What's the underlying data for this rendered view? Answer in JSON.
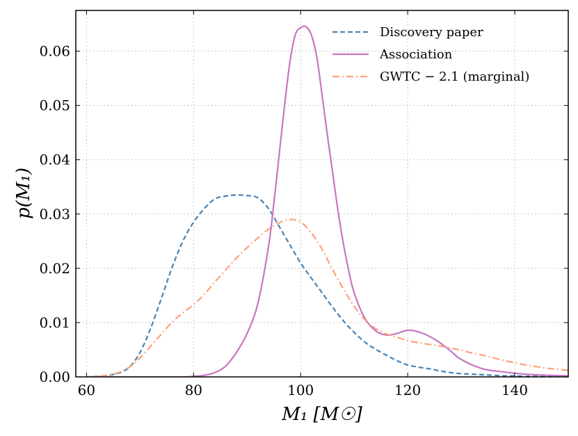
{
  "chart_data": {
    "type": "line",
    "xlabel": "M₁ [M☉]",
    "ylabel": "p(M₁)",
    "xlim": [
      58,
      150
    ],
    "ylim": [
      0,
      0.0675
    ],
    "grid": true,
    "legend_position": "top-right",
    "x_ticks": [
      60,
      80,
      100,
      120,
      140
    ],
    "x_tick_labels": [
      "60",
      "80",
      "100",
      "120",
      "140"
    ],
    "y_ticks": [
      0,
      0.01,
      0.02,
      0.03,
      0.04,
      0.05,
      0.06
    ],
    "y_tick_labels": [
      "0.00",
      "0.01",
      "0.02",
      "0.03",
      "0.04",
      "0.05",
      "0.06"
    ],
    "series": [
      {
        "name": "Discovery paper",
        "color": "#4682b4",
        "style": "dashed",
        "x": [
          60,
          62,
          64,
          66,
          68,
          70,
          72,
          74,
          76,
          78,
          80,
          82,
          84,
          86,
          88,
          90,
          92,
          94,
          96,
          98,
          100,
          102,
          104,
          106,
          108,
          110,
          112,
          114,
          116,
          118,
          120,
          122,
          124,
          126,
          128,
          130,
          132,
          134,
          136,
          138,
          140,
          142,
          144,
          146,
          148,
          150
        ],
        "y": [
          0.0,
          0.0001,
          0.0003,
          0.0007,
          0.0018,
          0.0045,
          0.009,
          0.0145,
          0.0202,
          0.025,
          0.0285,
          0.031,
          0.0328,
          0.0333,
          0.0335,
          0.0334,
          0.033,
          0.031,
          0.0277,
          0.0243,
          0.021,
          0.0182,
          0.0155,
          0.0128,
          0.0103,
          0.0082,
          0.0064,
          0.0051,
          0.004,
          0.003,
          0.0022,
          0.0018,
          0.0015,
          0.0011,
          0.0008,
          0.0006,
          0.0005,
          0.0004,
          0.0003,
          0.0002,
          0.0002,
          0.0001,
          0.0001,
          0.0001,
          0.0,
          0.0
        ]
      },
      {
        "name": "Association",
        "color": "#c875c4",
        "style": "solid",
        "x": [
          60,
          66,
          72,
          78,
          80,
          82,
          84,
          86,
          88,
          90,
          92,
          94,
          95,
          96,
          97,
          98,
          99,
          100,
          101,
          102,
          103,
          104,
          105,
          106,
          107,
          108,
          109,
          110,
          112,
          114,
          116,
          118,
          120,
          122,
          124,
          126,
          128,
          130,
          134,
          138,
          142,
          146,
          150
        ],
        "y": [
          0.0,
          0.0,
          0.0,
          0.0,
          0.0001,
          0.0003,
          0.0008,
          0.002,
          0.0045,
          0.008,
          0.0135,
          0.024,
          0.032,
          0.041,
          0.05,
          0.058,
          0.063,
          0.0643,
          0.0645,
          0.063,
          0.059,
          0.052,
          0.0445,
          0.0375,
          0.0305,
          0.0245,
          0.0195,
          0.0155,
          0.0108,
          0.0085,
          0.0077,
          0.008,
          0.0086,
          0.0083,
          0.0075,
          0.0063,
          0.0048,
          0.0032,
          0.0015,
          0.0009,
          0.0005,
          0.0003,
          0.0002
        ]
      },
      {
        "name": "GWTC − 2.1 (marginal)",
        "color": "#ffa07a",
        "style": "dashdot",
        "x": [
          60,
          62,
          64,
          66,
          68,
          70,
          72,
          74,
          76,
          78,
          80,
          82,
          84,
          86,
          88,
          90,
          92,
          94,
          96,
          98,
          100,
          102,
          104,
          106,
          108,
          110,
          112,
          114,
          116,
          118,
          120,
          122,
          124,
          126,
          128,
          130,
          132,
          134,
          136,
          138,
          140,
          142,
          144,
          146,
          148,
          150
        ],
        "y": [
          0.0,
          0.0001,
          0.0003,
          0.0008,
          0.0018,
          0.0035,
          0.0057,
          0.0079,
          0.0101,
          0.0118,
          0.0133,
          0.0152,
          0.0175,
          0.0197,
          0.0219,
          0.0238,
          0.0256,
          0.0272,
          0.0284,
          0.029,
          0.0285,
          0.0265,
          0.0235,
          0.0197,
          0.0162,
          0.013,
          0.0105,
          0.0089,
          0.0079,
          0.0073,
          0.0067,
          0.0063,
          0.006,
          0.0057,
          0.0053,
          0.0049,
          0.0044,
          0.004,
          0.0035,
          0.003,
          0.0026,
          0.0022,
          0.0019,
          0.0016,
          0.0014,
          0.0012
        ]
      }
    ]
  }
}
